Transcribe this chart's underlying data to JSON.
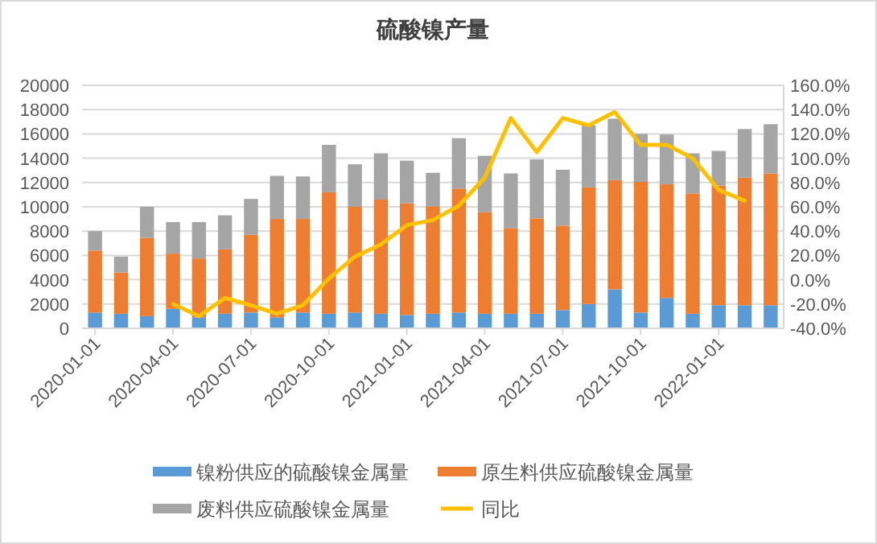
{
  "chart_data": {
    "type": "bar",
    "title": "硫酸镍产量",
    "stacked": true,
    "categories": [
      "2020-01-01",
      null,
      null,
      "2020-04-01",
      null,
      null,
      "2020-07-01",
      null,
      null,
      "2020-10-01",
      null,
      null,
      "2021-01-01",
      null,
      null,
      "2021-04-01",
      null,
      null,
      "2021-07-01",
      null,
      null,
      "2021-10-01",
      null,
      null,
      "2022-01-01",
      null,
      null
    ],
    "series": [
      {
        "name": "镍粉供应的硫酸镍金属量",
        "color": "#5b9bd5",
        "values": [
          1300,
          1200,
          1000,
          1600,
          900,
          1200,
          1300,
          900,
          1300,
          1200,
          1300,
          1200,
          1100,
          1200,
          1300,
          1200,
          1200,
          1200,
          1500,
          2000,
          3200,
          1300,
          2500,
          1200,
          1900,
          1900,
          1900
        ]
      },
      {
        "name": "原生料供应硫酸镍金属量",
        "color": "#ed7d31",
        "values": [
          5100,
          3400,
          6450,
          4550,
          4850,
          5300,
          6400,
          8100,
          7700,
          10000,
          8700,
          9400,
          9200,
          8850,
          10200,
          8350,
          7050,
          7850,
          6950,
          9600,
          9000,
          10750,
          9350,
          9900,
          9850,
          10500,
          10850
        ]
      },
      {
        "name": "废料供应硫酸镍金属量",
        "color": "#a5a5a5",
        "values": [
          1600,
          1300,
          2550,
          2600,
          3000,
          2800,
          2950,
          3550,
          3500,
          3900,
          3500,
          3800,
          3500,
          2750,
          4150,
          4650,
          4500,
          4850,
          4600,
          5100,
          5050,
          3950,
          4100,
          3300,
          2850,
          4000,
          4050
        ]
      },
      {
        "name": "同比",
        "color": "#ffc000",
        "type": "line",
        "axis": "y2",
        "values": [
          null,
          null,
          null,
          -20,
          -30,
          -15,
          -21,
          -28,
          -21,
          1,
          19,
          29,
          45,
          49,
          61,
          84,
          133,
          105,
          133,
          127,
          138,
          111,
          111,
          100,
          74,
          65,
          null
        ]
      }
    ],
    "ylim": [
      0,
      20000
    ],
    "yticks": [
      0,
      2000,
      4000,
      6000,
      8000,
      10000,
      12000,
      14000,
      16000,
      18000,
      20000
    ],
    "y2lim": [
      -40,
      160
    ],
    "y2ticks": [
      {
        "value": -40,
        "label": "-40.0%"
      },
      {
        "value": -20,
        "label": "-20.0%"
      },
      {
        "value": 0,
        "label": "0.0%"
      },
      {
        "value": 20,
        "label": "20.0%"
      },
      {
        "value": 40,
        "label": "40.0%"
      },
      {
        "value": 60,
        "label": "60.0%"
      },
      {
        "value": 80,
        "label": "80.0%"
      },
      {
        "value": 100,
        "label": "100.0%"
      },
      {
        "value": 120,
        "label": "120.0%"
      },
      {
        "value": 140,
        "label": "140.0%"
      },
      {
        "value": 160,
        "label": "160.0%"
      }
    ],
    "grid": "y",
    "legend": "bottom"
  }
}
